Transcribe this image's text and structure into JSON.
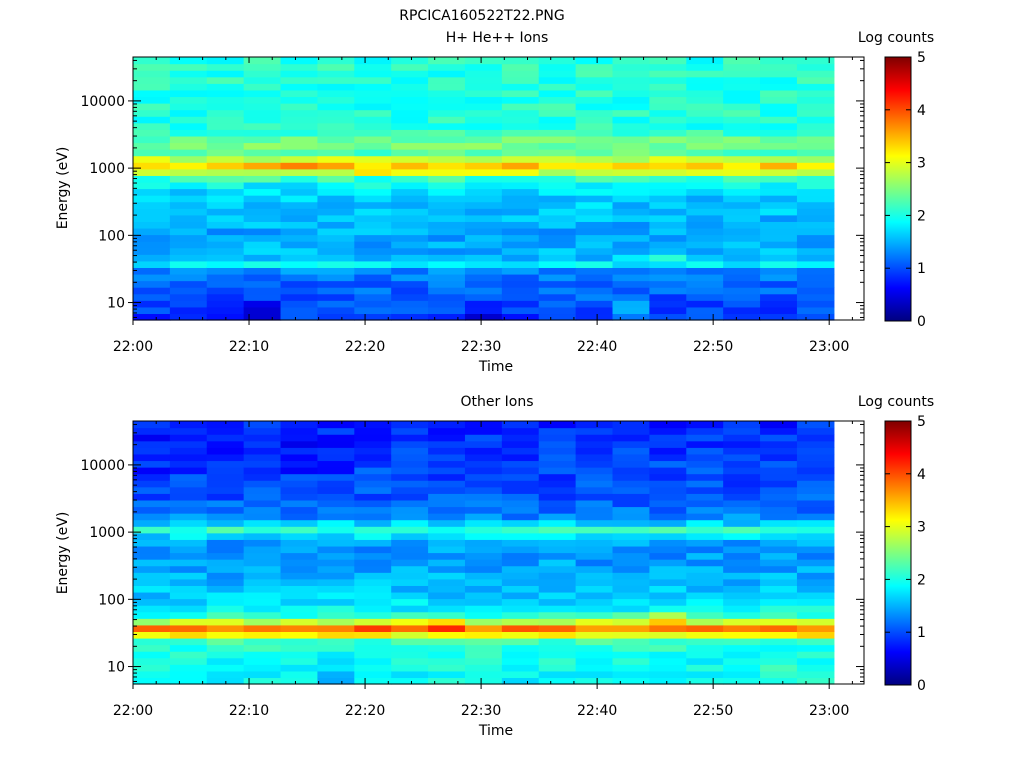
{
  "figure_title": "RPCICA160522T22.PNG",
  "colors": {
    "jet_stops": [
      "#00007f",
      "#0000ff",
      "#007fff",
      "#00ffff",
      "#7fff7f",
      "#ffff00",
      "#ff7f00",
      "#ff0000",
      "#7f0000"
    ],
    "background": "#ffffff",
    "axis": "#000000"
  },
  "chart_data": [
    {
      "type": "heatmap",
      "title": "H+ He++ Ions",
      "xlabel": "Time",
      "ylabel": "Energy (eV)",
      "x_ticks": [
        "22:00",
        "22:10",
        "22:20",
        "22:30",
        "22:40",
        "22:50",
        "23:00"
      ],
      "x_tick_minutes": [
        0,
        10,
        20,
        30,
        40,
        50,
        60
      ],
      "xlim_minutes": [
        0,
        63
      ],
      "data_end_minute": 60.4,
      "y_scale": "log",
      "ylim": [
        5.5,
        45000
      ],
      "y_ticks": [
        10,
        100,
        1000,
        10000
      ],
      "y_tick_labels": [
        "10",
        "100",
        "1000",
        "10000"
      ],
      "time_bins": 19,
      "energy_bins": 40,
      "colorbar": {
        "label": "Log counts",
        "range": [
          0,
          5
        ],
        "ticks": [
          "0",
          "1",
          "2",
          "3",
          "4",
          "5"
        ]
      },
      "energy_profile": [
        {
          "e": 6,
          "v": 1.05
        },
        {
          "e": 9,
          "v": 1.15
        },
        {
          "e": 14,
          "v": 1.25
        },
        {
          "e": 20,
          "v": 1.3
        },
        {
          "e": 28,
          "v": 1.35
        },
        {
          "e": 34,
          "v": 1.55
        },
        {
          "e": 40,
          "v": 2.05
        },
        {
          "e": 46,
          "v": 1.6
        },
        {
          "e": 60,
          "v": 1.5
        },
        {
          "e": 100,
          "v": 1.45
        },
        {
          "e": 200,
          "v": 1.55
        },
        {
          "e": 400,
          "v": 1.65
        },
        {
          "e": 650,
          "v": 1.95
        },
        {
          "e": 800,
          "v": 2.5
        },
        {
          "e": 900,
          "v": 3.0
        },
        {
          "e": 1000,
          "v": 3.45
        },
        {
          "e": 1150,
          "v": 3.3
        },
        {
          "e": 1450,
          "v": 2.7
        },
        {
          "e": 1800,
          "v": 2.2
        },
        {
          "e": 2300,
          "v": 2.6
        },
        {
          "e": 2800,
          "v": 2.3
        },
        {
          "e": 4000,
          "v": 2.05
        },
        {
          "e": 10000,
          "v": 2.05
        },
        {
          "e": 45000,
          "v": 2.05
        }
      ],
      "features": [
        {
          "t0": 0,
          "t1": 63,
          "e0": 6,
          "e1": 30,
          "dv": -0.15
        },
        {
          "t0": 5,
          "t1": 8,
          "e0": 6,
          "e1": 14,
          "dv": -0.35
        },
        {
          "t0": 10,
          "t1": 13,
          "e0": 6,
          "e1": 10,
          "dv": -0.6
        },
        {
          "t0": 30,
          "t1": 33,
          "e0": 6,
          "e1": 10,
          "dv": -0.4
        },
        {
          "t0": 40,
          "t1": 43,
          "e0": 6,
          "e1": 10,
          "dv": 0.35
        },
        {
          "t0": 43,
          "t1": 46,
          "e0": 6,
          "e1": 10,
          "dv": -0.4
        },
        {
          "t0": 46,
          "t1": 49,
          "e0": 44,
          "e1": 56,
          "dv": 0.55
        },
        {
          "t0": 13,
          "t1": 20,
          "e0": 950,
          "e1": 1250,
          "dv": 0.25
        },
        {
          "t0": 20,
          "t1": 26,
          "e0": 750,
          "e1": 950,
          "dv": 0.3
        }
      ]
    },
    {
      "type": "heatmap",
      "title": "Other Ions",
      "xlabel": "Time",
      "ylabel": "Energy (eV)",
      "x_ticks": [
        "22:00",
        "22:10",
        "22:20",
        "22:30",
        "22:40",
        "22:50",
        "23:00"
      ],
      "x_tick_minutes": [
        0,
        10,
        20,
        30,
        40,
        50,
        60
      ],
      "xlim_minutes": [
        0,
        63
      ],
      "data_end_minute": 60.4,
      "y_scale": "log",
      "ylim": [
        5.5,
        45000
      ],
      "y_ticks": [
        10,
        100,
        1000,
        10000
      ],
      "y_tick_labels": [
        "10",
        "100",
        "1000",
        "10000"
      ],
      "time_bins": 19,
      "energy_bins": 40,
      "colorbar": {
        "label": "Log counts",
        "range": [
          0,
          5
        ],
        "ticks": [
          "0",
          "1",
          "2",
          "3",
          "4",
          "5"
        ]
      },
      "energy_profile": [
        {
          "e": 6,
          "v": 1.9
        },
        {
          "e": 14,
          "v": 1.95
        },
        {
          "e": 20,
          "v": 2.05
        },
        {
          "e": 24,
          "v": 2.2
        },
        {
          "e": 28,
          "v": 2.9
        },
        {
          "e": 32,
          "v": 3.4
        },
        {
          "e": 37,
          "v": 3.75
        },
        {
          "e": 42,
          "v": 3.6
        },
        {
          "e": 48,
          "v": 2.6
        },
        {
          "e": 60,
          "v": 2.0
        },
        {
          "e": 100,
          "v": 1.65
        },
        {
          "e": 200,
          "v": 1.5
        },
        {
          "e": 500,
          "v": 1.35
        },
        {
          "e": 800,
          "v": 1.45
        },
        {
          "e": 950,
          "v": 1.95
        },
        {
          "e": 1100,
          "v": 2.15
        },
        {
          "e": 1300,
          "v": 1.75
        },
        {
          "e": 1700,
          "v": 1.3
        },
        {
          "e": 3000,
          "v": 1.05
        },
        {
          "e": 10000,
          "v": 0.95
        },
        {
          "e": 45000,
          "v": 0.8
        }
      ],
      "features": [
        {
          "t0": 16,
          "t1": 20,
          "e0": 6,
          "e1": 14,
          "dv": -0.25
        },
        {
          "t0": 50,
          "t1": 63,
          "e0": 6,
          "e1": 14,
          "dv": 0.1
        },
        {
          "t0": 20,
          "t1": 30,
          "e0": 36,
          "e1": 50,
          "dv": 0.3
        },
        {
          "t0": 46,
          "t1": 49,
          "e0": 38,
          "e1": 62,
          "dv": 0.75
        },
        {
          "t0": 40,
          "t1": 46,
          "e0": 50,
          "e1": 70,
          "dv": 0.25
        },
        {
          "t0": 0,
          "t1": 20,
          "e0": 8000,
          "e1": 30000,
          "dv": -0.15
        }
      ]
    }
  ]
}
